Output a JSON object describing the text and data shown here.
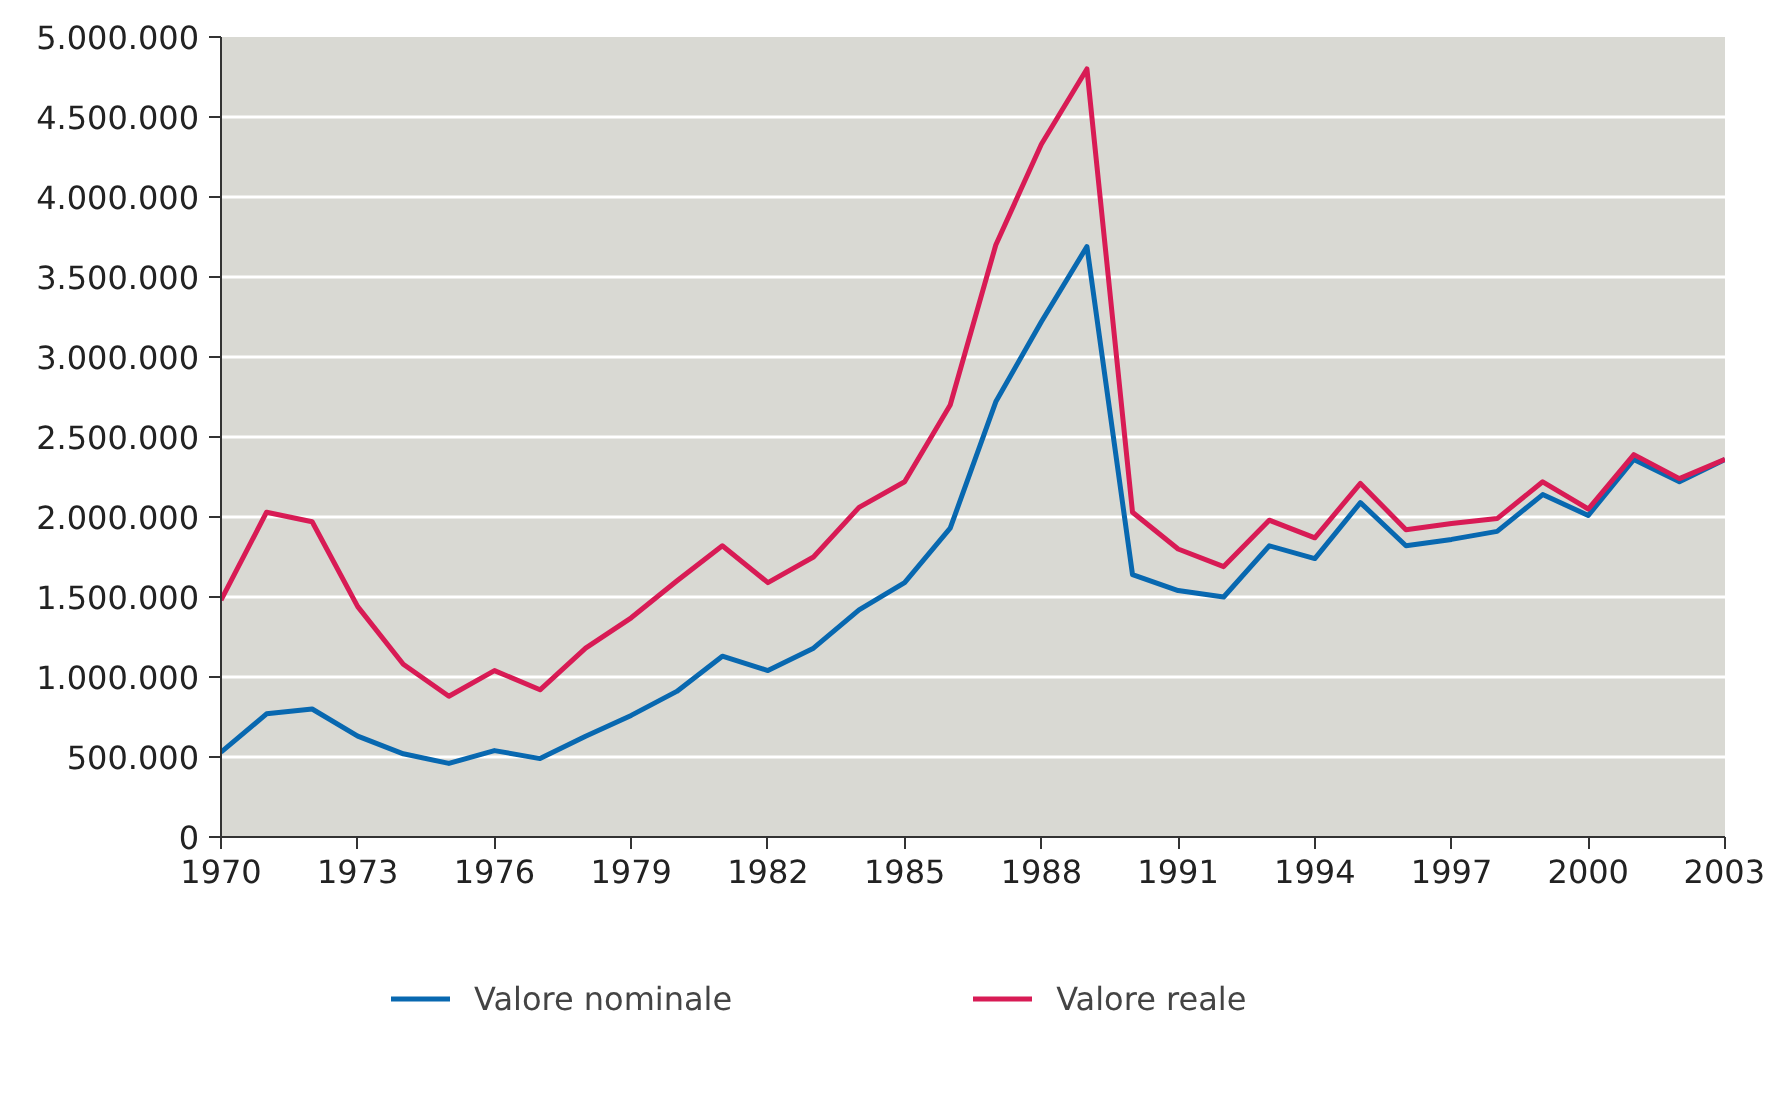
{
  "chart_data": {
    "type": "line",
    "x": [
      1970,
      1971,
      1972,
      1973,
      1974,
      1975,
      1976,
      1977,
      1978,
      1979,
      1980,
      1981,
      1982,
      1983,
      1984,
      1985,
      1986,
      1987,
      1988,
      1989,
      1990,
      1991,
      1992,
      1993,
      1994,
      1995,
      1996,
      1997,
      1998,
      1999,
      2000,
      2001,
      2002,
      2003
    ],
    "series": [
      {
        "name": "Valore nominale",
        "color": "#0868b0",
        "values": [
          530000,
          770000,
          800000,
          630000,
          520000,
          460000,
          540000,
          490000,
          630000,
          760000,
          910000,
          1130000,
          1040000,
          1180000,
          1420000,
          1590000,
          1930000,
          2720000,
          3220000,
          3690000,
          1640000,
          1540000,
          1500000,
          1820000,
          1740000,
          2090000,
          1820000,
          1860000,
          1910000,
          2140000,
          2010000,
          2360000,
          2220000,
          2360000
        ]
      },
      {
        "name": "Valore reale",
        "color": "#d81b55",
        "values": [
          1480000,
          2030000,
          1970000,
          1440000,
          1080000,
          880000,
          1040000,
          920000,
          1180000,
          1370000,
          1600000,
          1820000,
          1590000,
          1750000,
          2060000,
          2220000,
          2700000,
          3700000,
          4330000,
          4800000,
          2030000,
          1800000,
          1690000,
          1980000,
          1870000,
          2210000,
          1920000,
          1960000,
          1990000,
          2220000,
          2050000,
          2390000,
          2240000,
          2360000
        ]
      }
    ],
    "xlim": [
      1970,
      2003
    ],
    "xticks": [
      1970,
      1973,
      1976,
      1979,
      1982,
      1985,
      1988,
      1991,
      1994,
      1997,
      2000,
      2003
    ],
    "ylim": [
      0,
      5000000
    ],
    "yticks": [
      0,
      {
        "value": 500000,
        "label": "500.000"
      },
      {
        "value": 1000000,
        "label": "1.000.000"
      },
      {
        "value": 1500000,
        "label": "1.500.000"
      },
      {
        "value": 2000000,
        "label": "2.000.000"
      },
      {
        "value": 2500000,
        "label": "2.500.000"
      },
      {
        "value": 3000000,
        "label": "3.000.000"
      },
      {
        "value": 3500000,
        "label": "3.500.000"
      },
      {
        "value": 4000000,
        "label": "4.000.000"
      },
      {
        "value": 4500000,
        "label": "4.500.000"
      },
      {
        "value": 5000000,
        "label": "5.000.000"
      }
    ],
    "grid": "y",
    "legend": "bottom"
  }
}
